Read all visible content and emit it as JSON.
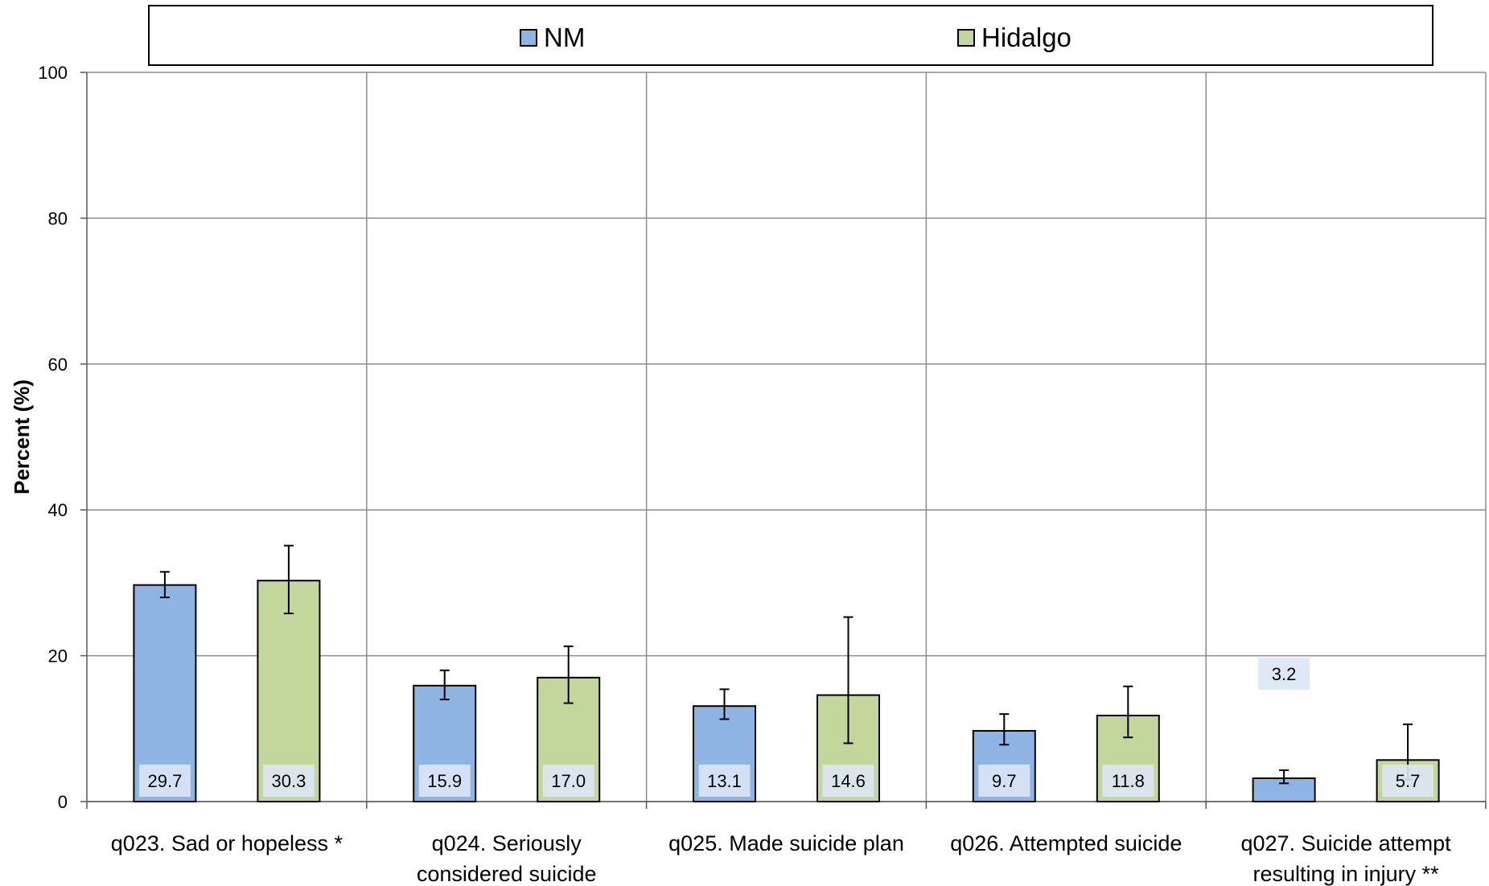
{
  "chart_data": {
    "type": "bar",
    "title": "",
    "xlabel": "",
    "ylabel": "Percent (%)",
    "ylim": [
      0,
      100
    ],
    "yticks": [
      0,
      20,
      40,
      60,
      80,
      100
    ],
    "grid": true,
    "legend_position": "top",
    "categories": [
      [
        "q023. Sad or hopeless *"
      ],
      [
        "q024. Seriously",
        "considered suicide"
      ],
      [
        "q025. Made suicide plan"
      ],
      [
        "q026. Attempted suicide"
      ],
      [
        "q027. Suicide attempt",
        "resulting in injury **"
      ]
    ],
    "series": [
      {
        "name": "NM",
        "color": "#8EB4E3",
        "values": [
          29.7,
          15.9,
          13.1,
          9.7,
          3.2
        ],
        "labels": [
          "29.7",
          "15.9",
          "13.1",
          "9.7",
          "3.2"
        ],
        "ci_low": [
          28.0,
          14.0,
          11.3,
          7.8,
          2.5
        ],
        "ci_high": [
          31.5,
          18.0,
          15.4,
          12.0,
          4.3
        ]
      },
      {
        "name": "Hidalgo",
        "color": "#C3D69B",
        "values": [
          30.3,
          17.0,
          14.6,
          11.8,
          5.7
        ],
        "labels": [
          "30.3",
          "17.0",
          "14.6",
          "11.8",
          "5.7"
        ],
        "ci_low": [
          25.8,
          13.5,
          8.0,
          8.8,
          3.0
        ],
        "ci_high": [
          35.1,
          21.3,
          25.3,
          15.8,
          10.6
        ]
      }
    ]
  }
}
